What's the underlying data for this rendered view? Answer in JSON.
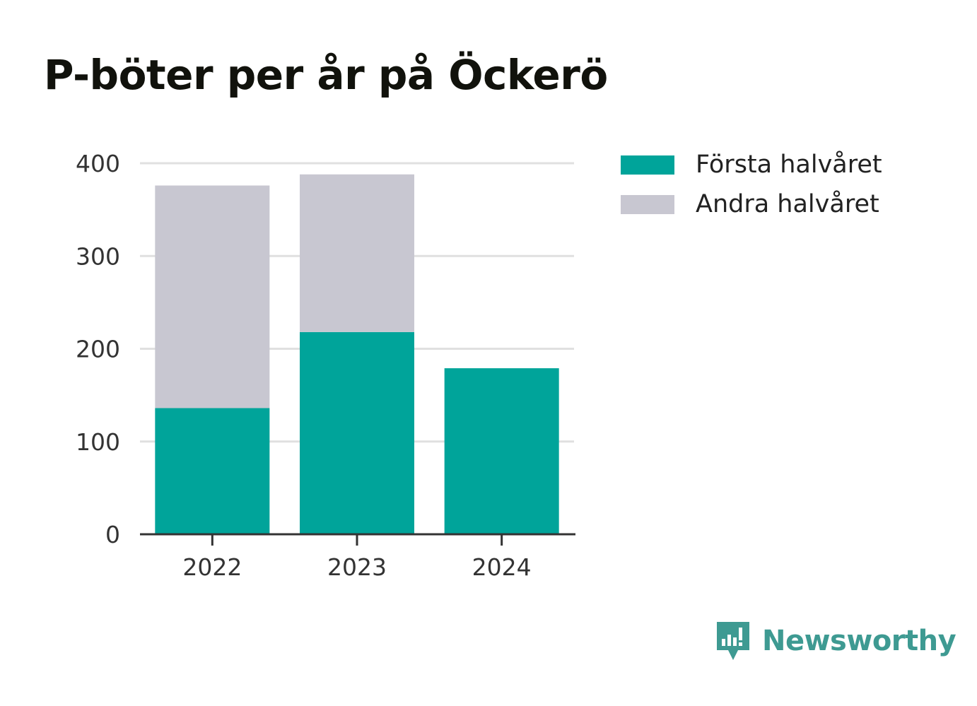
{
  "colors": {
    "first_half": "#00a49a",
    "second_half": "#c8c7d1",
    "brand": "#3e9a92",
    "grid": "#e0e0e0",
    "axis": "#333333"
  },
  "legend": {
    "items": [
      {
        "label": "Första halvåret",
        "color": "#00a49a"
      },
      {
        "label": "Andra halvåret",
        "color": "#c8c7d1"
      }
    ],
    "placement": "right"
  },
  "brand": {
    "name": "Newsworthy",
    "icon": "newsworthy-logo-icon"
  },
  "chart_data": {
    "type": "bar",
    "stacked": true,
    "title": "P-böter per år på Öckerö",
    "xlabel": "",
    "ylabel": "",
    "categories": [
      "2022",
      "2023",
      "2024"
    ],
    "series": [
      {
        "name": "Första halvåret",
        "values": [
          136,
          218,
          179
        ]
      },
      {
        "name": "Andra halvåret",
        "values": [
          240,
          170,
          0
        ]
      }
    ],
    "ylim": [
      0,
      400
    ],
    "yticks": [
      0,
      100,
      200,
      300,
      400
    ],
    "grid": true
  }
}
